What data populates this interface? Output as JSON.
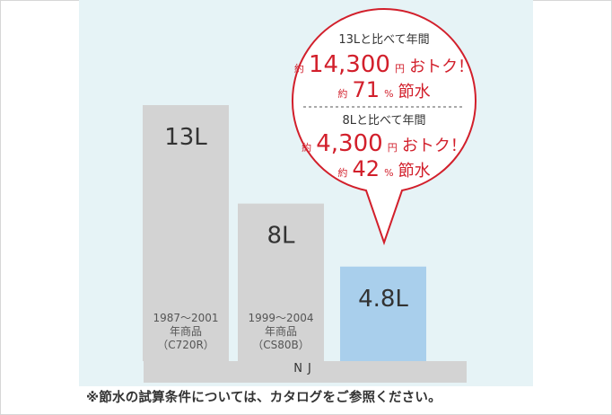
{
  "chart_data": {
    "type": "bar",
    "unit": "L",
    "categories": [
      "1987〜2001 年商品 （C720R）",
      "1999〜2004 年商品 （CS80B）",
      "NJ"
    ],
    "series": [
      {
        "values": [
          13,
          8,
          4.8
        ]
      }
    ],
    "value_labels": [
      "13L",
      "8L",
      "4.8L"
    ],
    "bar_captions": [
      [
        "1987〜2001",
        "年商品",
        "（C720R）"
      ],
      [
        "1999〜2004",
        "年商品",
        "（CS80B）"
      ],
      []
    ],
    "bar_colors": [
      "#d3d3d3",
      "#d3d3d3",
      "#a9cfec"
    ],
    "ylim": [
      0,
      13
    ],
    "axis_category_label": "NJ",
    "callout": {
      "line1_head": "13Lと比べて年間",
      "line1_prefix": "約",
      "line1_amount": "14,300",
      "line1_suffix_small": "円",
      "line1_suffix": "おトク！",
      "line2_prefix": "約",
      "line2_value": "71",
      "line2_unit": "%",
      "line2_suffix": "節水",
      "line3_head": "8Lと比べて年間",
      "line3_prefix": "約",
      "line3_amount": "4,300",
      "line3_suffix_small": "円",
      "line3_suffix": "おトク！",
      "line4_prefix": "約",
      "line4_value": "42",
      "line4_unit": "%",
      "line4_suffix": "節水"
    }
  },
  "footnote": "※節水の試算条件については、カタログをご参照ください。",
  "colors": {
    "accent_red": "#d21f2b",
    "panel_bg": "#e6f3f6",
    "axis_bar": "#d3d3d3"
  }
}
